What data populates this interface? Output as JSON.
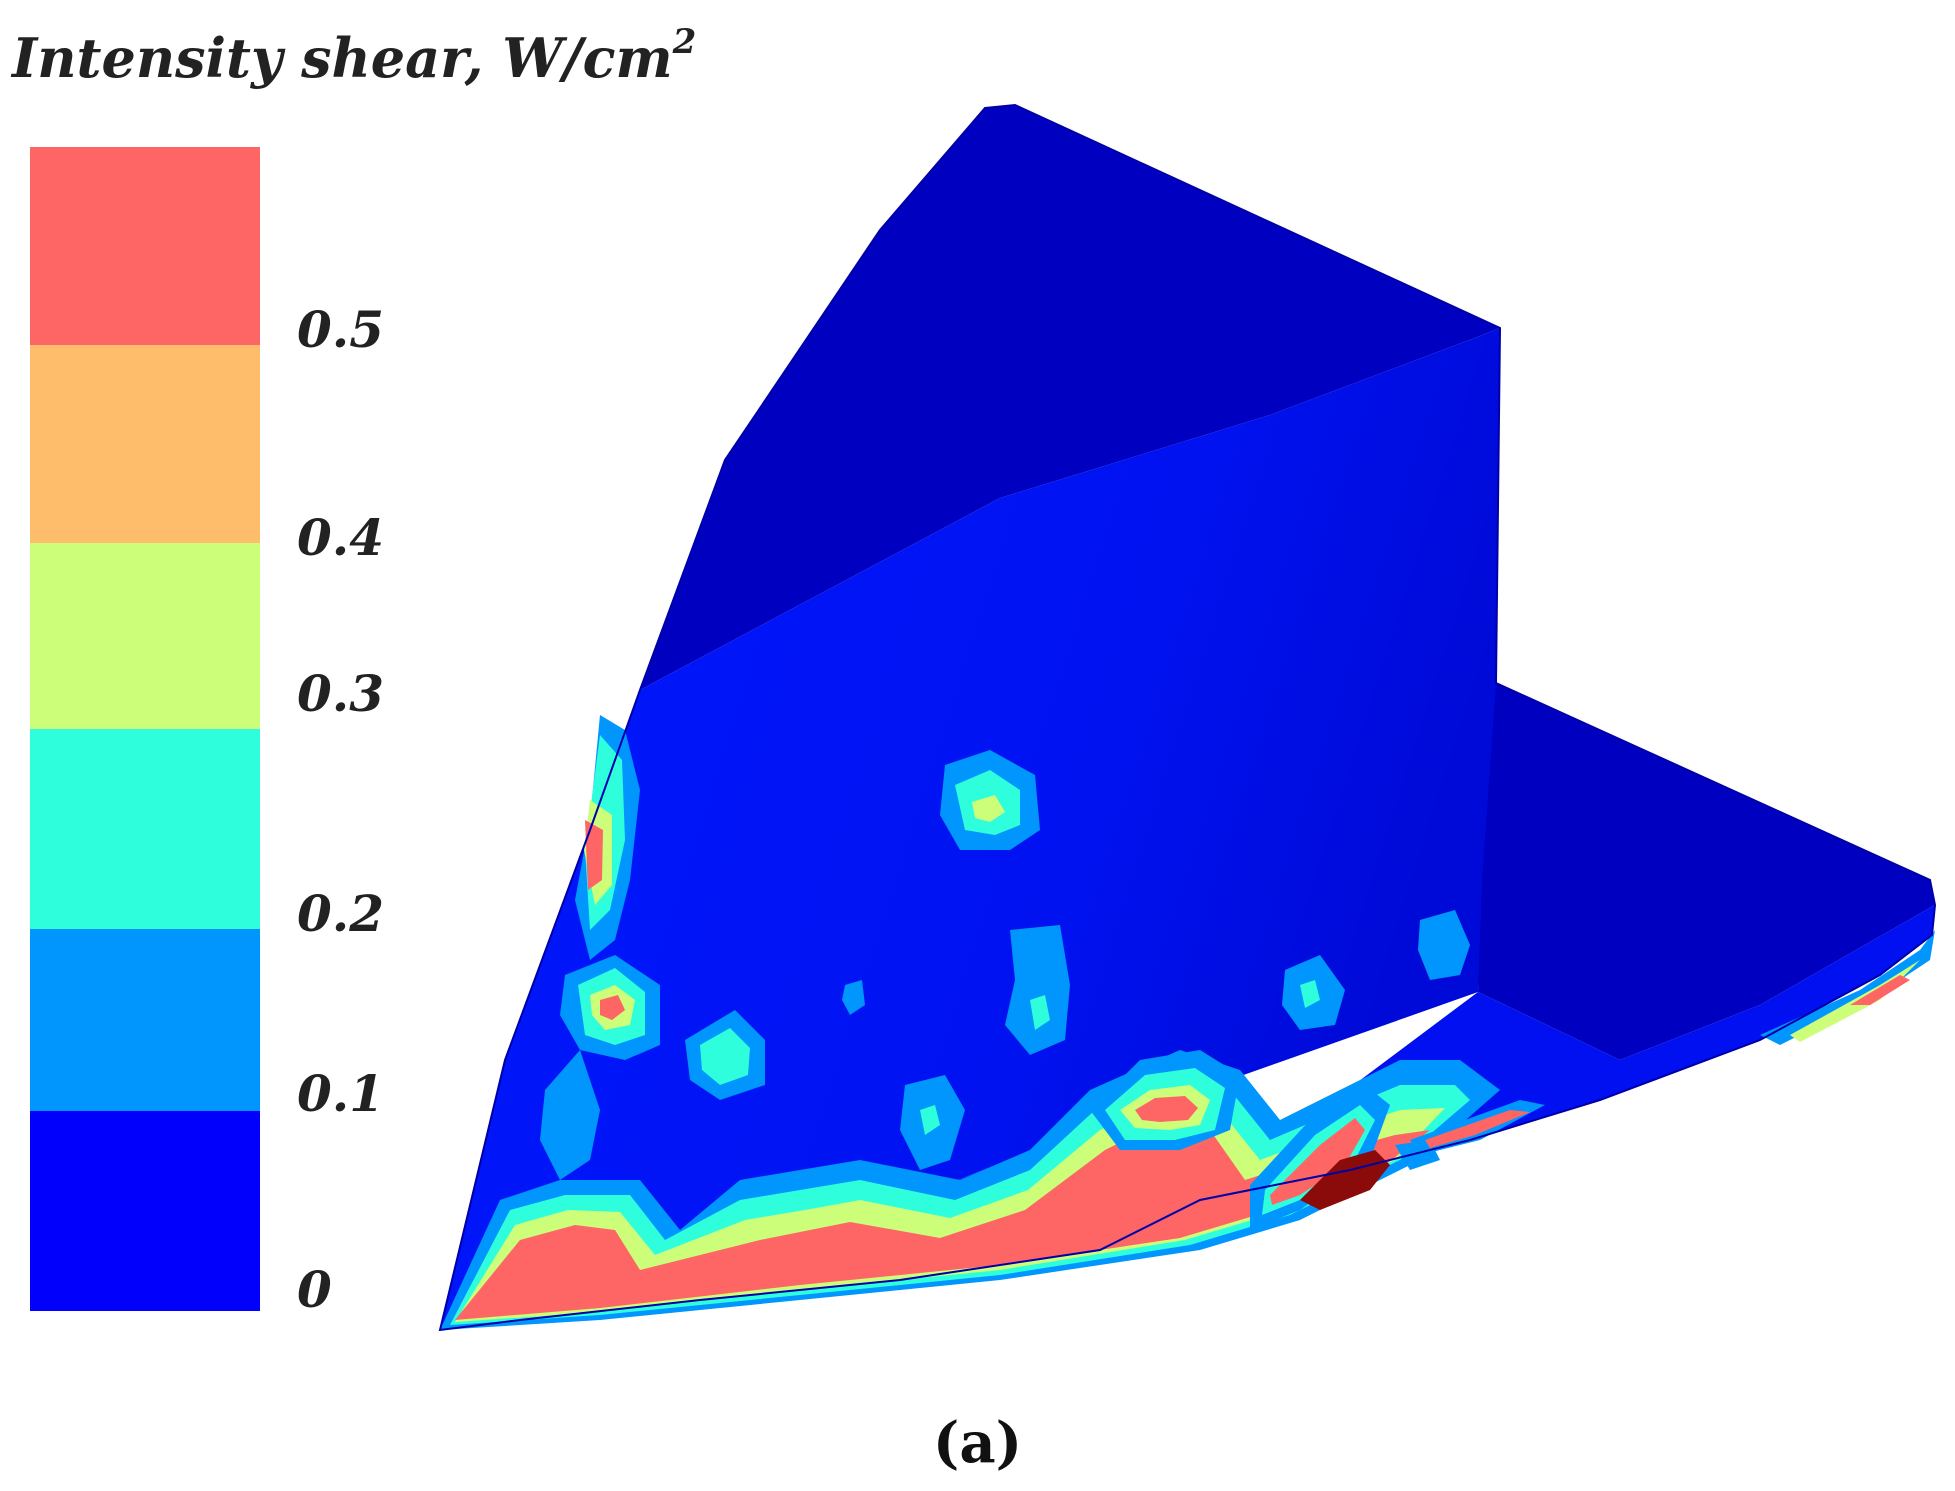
{
  "legend": {
    "title": "Intensity shear, W/cm",
    "title_sup": "2",
    "bands": [
      {
        "color": "#fe6565"
      },
      {
        "color": "#fdbd6b"
      },
      {
        "color": "#cdfe79"
      },
      {
        "color": "#2efedb"
      },
      {
        "color": "#0096fe"
      },
      {
        "color": "#0000fc"
      }
    ],
    "ticks": [
      "0.5",
      "0.4",
      "0.3",
      "0.2",
      "0.1",
      "0"
    ]
  },
  "colors": {
    "surface_dark": "#0000c0",
    "surface_mid": "#0010f0",
    "surface_light": "#0020ff",
    "hot_dark": "#8b0a0a"
  },
  "caption": "(a)"
}
